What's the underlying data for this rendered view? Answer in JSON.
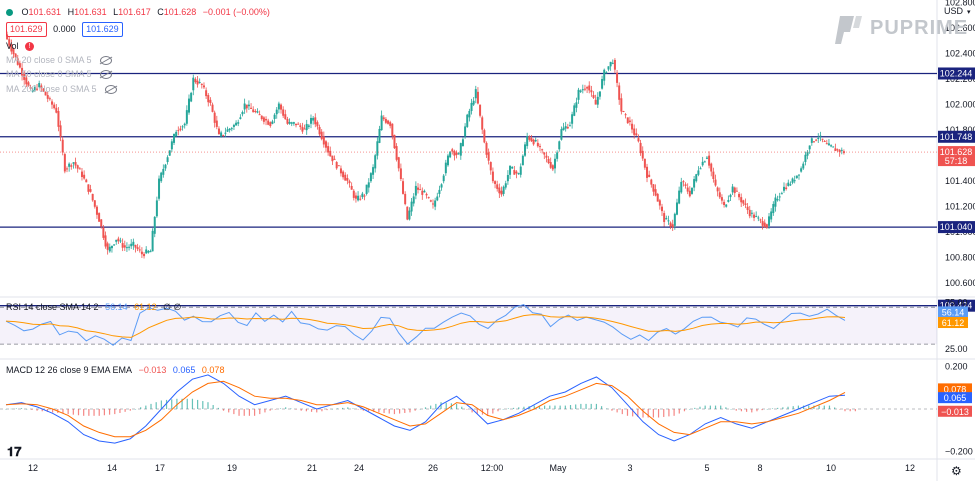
{
  "header": {
    "dot_color": "#089981",
    "ohlc": {
      "o_label": "O",
      "o": "101.631",
      "h_label": "H",
      "h": "101.631",
      "l_label": "L",
      "l": "101.617",
      "c_label": "C",
      "c": "101.628",
      "change": "−0.001 (−0.00%)"
    },
    "bid": "101.629",
    "spread": "0.000",
    "ask": "101.629",
    "vol_label": "Vol",
    "ma_lines": [
      "MA 20 close 0 SMA 5",
      "MA 50 close 0 SMA 5",
      "MA 200 close 0 SMA 5"
    ],
    "currency": "USD"
  },
  "brand": {
    "name": "PUPRIME"
  },
  "chart_data": [
    {
      "type": "candlestick",
      "title": "",
      "y_ticks": [
        "102.800",
        "102.600",
        "102.400",
        "102.200",
        "102.000",
        "101.800",
        "101.600",
        "101.400",
        "101.200",
        "101.000",
        "100.800",
        "100.600"
      ],
      "ylim": [
        100.5,
        102.82
      ],
      "x_ticks": [
        "12",
        "14",
        "17",
        "19",
        "21",
        "24",
        "26",
        "12:00",
        "May",
        "3",
        "5",
        "8",
        "10",
        "12"
      ],
      "horizontal_levels": [
        {
          "value": 102.244,
          "label": "102.244"
        },
        {
          "value": 101.748,
          "label": "101.748"
        },
        {
          "value": 101.04,
          "label": "101.040"
        },
        {
          "value": 100.424,
          "label": "100.424"
        }
      ],
      "last_price": {
        "value": 101.628,
        "label": "101.628",
        "countdown": "57:18"
      },
      "colors": {
        "up": "#26a69a",
        "down": "#ef5350",
        "level": "#1a237e"
      },
      "close_path": [
        102.55,
        102.4,
        102.25,
        102.1,
        102.15,
        102.05,
        101.95,
        101.5,
        101.55,
        101.45,
        101.3,
        101.1,
        100.85,
        100.95,
        100.88,
        100.9,
        100.83,
        100.85,
        101.4,
        101.6,
        101.8,
        101.85,
        102.2,
        102.15,
        102.0,
        101.75,
        101.8,
        101.85,
        102.0,
        101.95,
        101.9,
        101.85,
        102.0,
        101.85,
        101.85,
        101.8,
        101.9,
        101.75,
        101.6,
        101.5,
        101.4,
        101.25,
        101.3,
        101.5,
        101.9,
        101.85,
        101.5,
        101.1,
        101.35,
        101.3,
        101.2,
        101.4,
        101.65,
        101.6,
        101.9,
        102.1,
        101.7,
        101.4,
        101.3,
        101.5,
        101.45,
        101.75,
        101.7,
        101.6,
        101.5,
        101.8,
        101.85,
        102.1,
        102.15,
        102.0,
        102.25,
        102.35,
        101.95,
        101.85,
        101.7,
        101.45,
        101.3,
        101.1,
        101.05,
        101.4,
        101.3,
        101.5,
        101.6,
        101.35,
        101.2,
        101.35,
        101.25,
        101.15,
        101.1,
        101.05,
        101.25,
        101.35,
        101.4,
        101.5,
        101.7,
        101.75,
        101.68,
        101.65,
        101.63
      ]
    },
    {
      "type": "line",
      "title": "",
      "indicator": "RSI 14 close SMA 14 2",
      "series": [
        {
          "value": "56.14",
          "color": "#5b9cf6"
        },
        {
          "value": "61.12",
          "color": "#ff9800"
        }
      ],
      "extra": "∅ ∅",
      "y_ticks": [
        "75.00",
        "25.00"
      ],
      "ylim": [
        15,
        80
      ],
      "bands": [
        70,
        30
      ],
      "rsi_path": [
        55,
        52,
        48,
        45,
        50,
        55,
        42,
        48,
        40,
        32,
        38,
        34,
        30,
        33,
        35,
        62,
        70,
        68,
        72,
        66,
        60,
        64,
        55,
        52,
        58,
        62,
        57,
        54,
        60,
        56,
        58,
        55,
        62,
        57,
        52,
        48,
        44,
        50,
        46,
        42,
        38,
        48,
        60,
        58,
        44,
        32,
        40,
        44,
        48,
        52,
        60,
        66,
        62,
        54,
        50,
        56,
        60,
        70,
        72,
        66,
        60,
        52,
        58,
        62,
        56,
        60,
        54,
        50,
        46,
        42,
        38,
        36,
        34,
        44,
        48,
        40,
        50,
        56,
        62,
        58,
        55,
        52,
        48,
        56,
        60,
        54,
        50,
        56,
        60,
        62,
        58,
        65,
        64,
        60,
        56
      ]
    },
    {
      "type": "line",
      "title": "",
      "indicator": "MACD 12 26 close 9 EMA EMA",
      "series": [
        {
          "value": "−0.013",
          "color": "#ef5350"
        },
        {
          "value": "0.065",
          "color": "#2962ff"
        },
        {
          "value": "0.078",
          "color": "#ff6d00"
        }
      ],
      "y_ticks": [
        "0.200",
        "−0.200"
      ],
      "ylim": [
        -0.23,
        0.23
      ],
      "macd_path": [
        0.02,
        0.03,
        0.01,
        -0.02,
        -0.06,
        -0.12,
        -0.15,
        -0.16,
        -0.14,
        -0.08,
        0.0,
        0.08,
        0.14,
        0.16,
        0.12,
        0.06,
        0.02,
        0.04,
        0.06,
        0.03,
        0.0,
        0.02,
        0.04,
        0.0,
        -0.04,
        -0.08,
        -0.1,
        -0.06,
        0.02,
        0.06,
        0.0,
        -0.07,
        -0.05,
        -0.02,
        0.02,
        0.06,
        0.08,
        0.12,
        0.15,
        0.1,
        0.02,
        -0.06,
        -0.12,
        -0.15,
        -0.12,
        -0.07,
        -0.04,
        -0.07,
        -0.09,
        -0.06,
        -0.03,
        0.0,
        0.03,
        0.06,
        0.065
      ],
      "signal_path": [
        0.02,
        0.025,
        0.02,
        0.0,
        -0.03,
        -0.08,
        -0.11,
        -0.13,
        -0.13,
        -0.1,
        -0.05,
        0.02,
        0.08,
        0.12,
        0.13,
        0.1,
        0.06,
        0.05,
        0.05,
        0.04,
        0.02,
        0.02,
        0.03,
        0.01,
        -0.02,
        -0.05,
        -0.08,
        -0.07,
        -0.02,
        0.03,
        0.02,
        -0.03,
        -0.05,
        -0.03,
        0.0,
        0.04,
        0.06,
        0.09,
        0.12,
        0.11,
        0.06,
        -0.01,
        -0.07,
        -0.11,
        -0.12,
        -0.09,
        -0.06,
        -0.06,
        -0.07,
        -0.06,
        -0.04,
        -0.02,
        0.01,
        0.04,
        0.078
      ]
    }
  ]
}
